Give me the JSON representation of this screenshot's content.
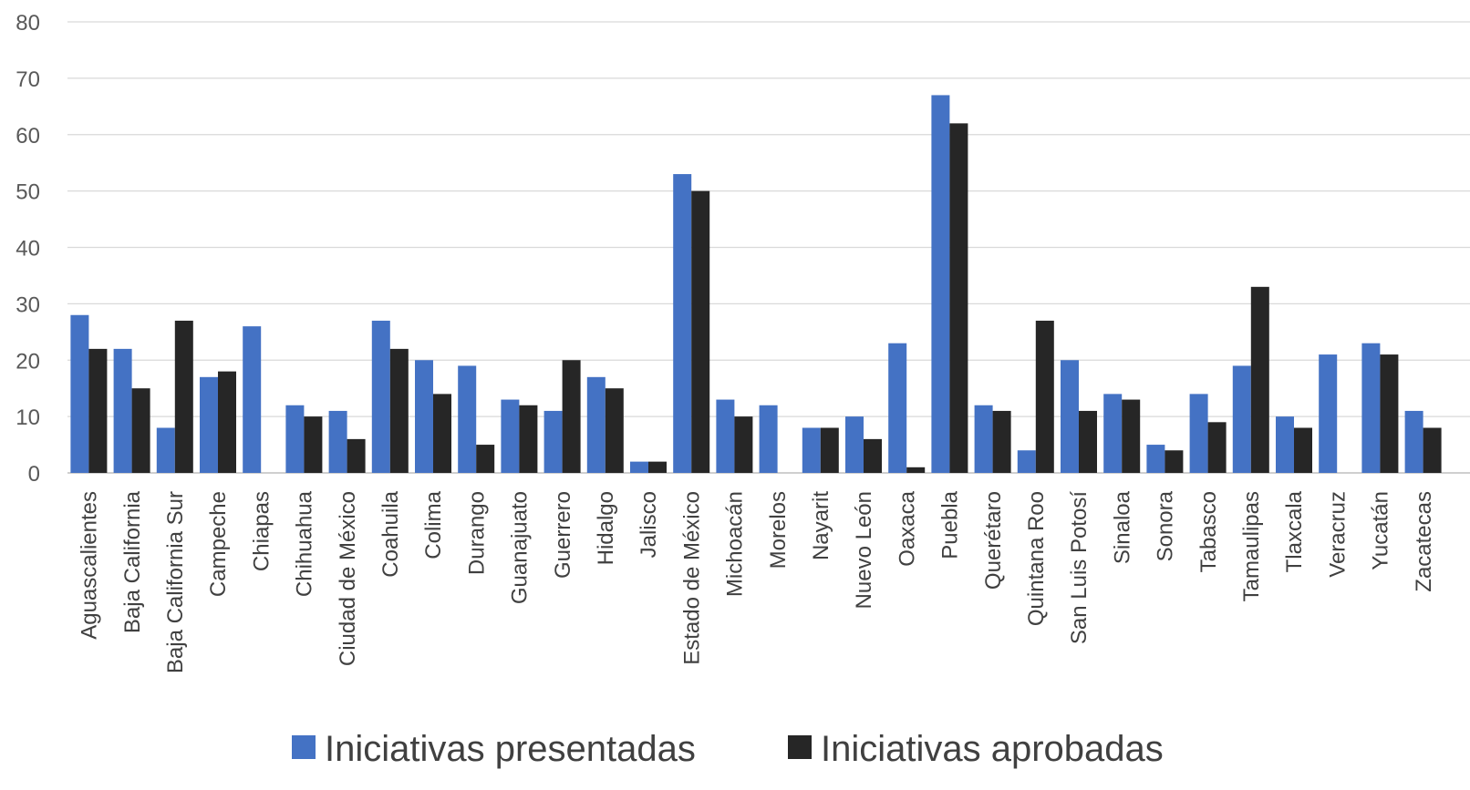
{
  "chart_data": {
    "type": "bar",
    "categories": [
      "Aguascalientes",
      "Baja California",
      "Baja California Sur",
      "Campeche",
      "Chiapas",
      "Chihuahua",
      "Ciudad de México",
      "Coahuila",
      "Colima",
      "Durango",
      "Guanajuato",
      "Guerrero",
      "Hidalgo",
      "Jalisco",
      "Estado de México",
      "Michoacán",
      "Morelos",
      "Nayarit",
      "Nuevo León",
      "Oaxaca",
      "Puebla",
      "Querétaro",
      "Quintana Roo",
      "San Luis Potosí",
      "Sinaloa",
      "Sonora",
      "Tabasco",
      "Tamaulipas",
      "Tlaxcala",
      "Veracruz",
      "Yucatán",
      "Zacatecas"
    ],
    "series": [
      {
        "name": "Iniciativas presentadas",
        "color": "#4472C4",
        "values": [
          28,
          22,
          8,
          17,
          26,
          12,
          11,
          27,
          20,
          19,
          13,
          11,
          17,
          2,
          53,
          13,
          12,
          8,
          10,
          23,
          67,
          12,
          4,
          20,
          14,
          5,
          14,
          19,
          10,
          21,
          23,
          11
        ]
      },
      {
        "name": "Iniciativas aprobadas",
        "color": "#262626",
        "values": [
          22,
          15,
          27,
          18,
          0,
          10,
          6,
          22,
          14,
          5,
          12,
          20,
          15,
          2,
          50,
          10,
          0,
          8,
          6,
          1,
          62,
          11,
          27,
          11,
          13,
          4,
          9,
          33,
          8,
          0,
          21,
          8
        ]
      }
    ],
    "yticks": [
      0,
      10,
      20,
      30,
      40,
      50,
      60,
      70,
      80
    ],
    "ylim": [
      0,
      80
    ],
    "grid": true,
    "legend_position": "bottom",
    "title": "",
    "xlabel": "",
    "ylabel": ""
  }
}
